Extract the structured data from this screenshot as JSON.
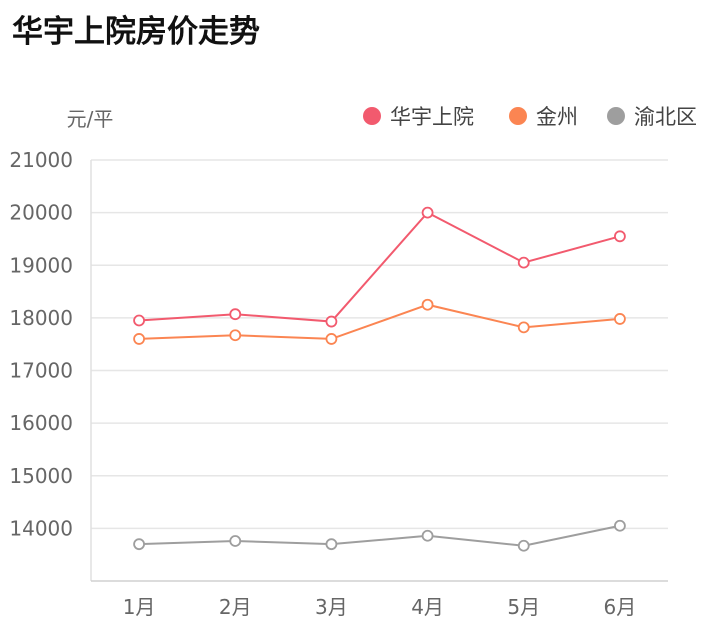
{
  "chart_data": {
    "type": "line",
    "title": "华宇上院房价走势",
    "ylabel": "元/平",
    "xlabel": "",
    "categories": [
      "1月",
      "2月",
      "3月",
      "4月",
      "5月",
      "6月"
    ],
    "ylim": [
      13000,
      21000
    ],
    "yticks": [
      "14000",
      "15000",
      "16000",
      "17000",
      "18000",
      "19000",
      "20000",
      "21000"
    ],
    "grid": true,
    "legend_position": "top-right",
    "series": [
      {
        "name": "华宇上院",
        "color": "#f25a6e",
        "values": [
          17950,
          18070,
          17930,
          20000,
          19050,
          19550
        ]
      },
      {
        "name": "金州",
        "color": "#fb8552",
        "values": [
          17600,
          17670,
          17600,
          18250,
          17820,
          17980
        ]
      },
      {
        "name": "渝北区",
        "color": "#9e9e9e",
        "values": [
          13700,
          13760,
          13700,
          13860,
          13670,
          14050
        ]
      }
    ]
  }
}
